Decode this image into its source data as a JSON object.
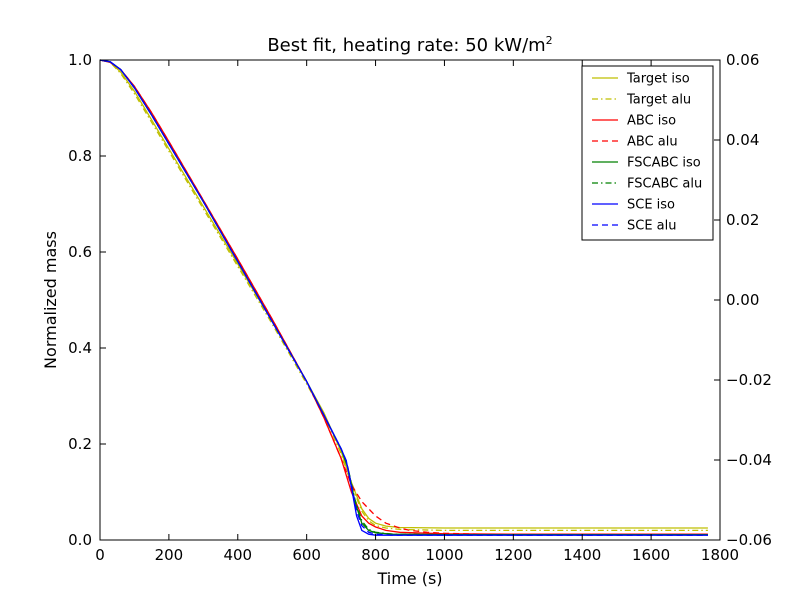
{
  "chart_data": {
    "type": "line",
    "title_text": "Best fit, heating rate: 50 kW/m",
    "title_sup": "2",
    "xlabel": "Time (s)",
    "ylabel": "Normalized mass",
    "xlim": [
      0,
      1800
    ],
    "ylim": [
      0,
      1.0
    ],
    "y2lim": [
      -0.06,
      0.06
    ],
    "xticks": [
      "0",
      "200",
      "400",
      "600",
      "800",
      "1000",
      "1200",
      "1400",
      "1600",
      "1800"
    ],
    "yticks": [
      "0.0",
      "0.2",
      "0.4",
      "0.6",
      "0.8",
      "1.0"
    ],
    "y2ticks": [
      "−0.06",
      "−0.04",
      "−0.02",
      "0.00",
      "0.02",
      "0.04",
      "0.06"
    ],
    "legend_position": "top-right",
    "series": [
      {
        "name": "Target iso",
        "color": "#bfbf00",
        "dash": "solid",
        "x": [
          0,
          30,
          60,
          100,
          150,
          200,
          300,
          400,
          500,
          600,
          650,
          700,
          730,
          760,
          780,
          800,
          830,
          870,
          1000,
          1200,
          1400,
          1600,
          1765
        ],
        "y": [
          1.0,
          0.995,
          0.975,
          0.935,
          0.875,
          0.815,
          0.695,
          0.575,
          0.455,
          0.33,
          0.265,
          0.185,
          0.12,
          0.065,
          0.045,
          0.035,
          0.029,
          0.026,
          0.025,
          0.025,
          0.025,
          0.025,
          0.025
        ]
      },
      {
        "name": "Target alu",
        "color": "#bfbf00",
        "dash": "dashdot",
        "x": [
          0,
          30,
          60,
          100,
          150,
          200,
          300,
          400,
          500,
          600,
          650,
          700,
          730,
          760,
          780,
          800,
          830,
          870,
          1000,
          1200,
          1400,
          1600,
          1765
        ],
        "y": [
          1.0,
          0.995,
          0.972,
          0.93,
          0.87,
          0.81,
          0.69,
          0.57,
          0.45,
          0.325,
          0.26,
          0.18,
          0.115,
          0.06,
          0.04,
          0.03,
          0.025,
          0.022,
          0.02,
          0.02,
          0.02,
          0.02,
          0.02
        ]
      },
      {
        "name": "ABC iso",
        "color": "#ff0000",
        "dash": "solid",
        "x": [
          0,
          30,
          60,
          100,
          150,
          200,
          300,
          400,
          500,
          600,
          650,
          700,
          730,
          760,
          780,
          800,
          830,
          870,
          1000,
          1200,
          1400,
          1600,
          1765
        ],
        "y": [
          1.0,
          0.995,
          0.98,
          0.945,
          0.89,
          0.83,
          0.708,
          0.585,
          0.46,
          0.33,
          0.255,
          0.17,
          0.1,
          0.05,
          0.035,
          0.027,
          0.02,
          0.016,
          0.013,
          0.012,
          0.012,
          0.012,
          0.012
        ]
      },
      {
        "name": "ABC alu",
        "color": "#ff0000",
        "dash": "dashed",
        "x": [
          0,
          30,
          60,
          100,
          150,
          200,
          300,
          400,
          500,
          600,
          650,
          700,
          730,
          760,
          780,
          800,
          830,
          870,
          900,
          950,
          1000,
          1100,
          1200,
          1400,
          1600,
          1765
        ],
        "y": [
          1.0,
          0.995,
          0.98,
          0.945,
          0.89,
          0.83,
          0.708,
          0.585,
          0.46,
          0.33,
          0.255,
          0.17,
          0.115,
          0.08,
          0.065,
          0.05,
          0.035,
          0.025,
          0.02,
          0.016,
          0.014,
          0.012,
          0.012,
          0.012,
          0.012,
          0.012
        ]
      },
      {
        "name": "FSCABC iso",
        "color": "#008000",
        "dash": "solid",
        "x": [
          0,
          30,
          60,
          100,
          150,
          200,
          300,
          400,
          500,
          600,
          650,
          700,
          720,
          740,
          760,
          780,
          800,
          850,
          1000,
          1200,
          1400,
          1600,
          1765
        ],
        "y": [
          1.0,
          0.996,
          0.98,
          0.942,
          0.885,
          0.825,
          0.705,
          0.58,
          0.455,
          0.33,
          0.26,
          0.19,
          0.15,
          0.08,
          0.035,
          0.02,
          0.015,
          0.012,
          0.011,
          0.011,
          0.011,
          0.011,
          0.011
        ]
      },
      {
        "name": "FSCABC alu",
        "color": "#008000",
        "dash": "dashdot",
        "x": [
          0,
          30,
          60,
          100,
          150,
          200,
          300,
          400,
          500,
          600,
          650,
          700,
          720,
          740,
          760,
          780,
          800,
          850,
          1000,
          1200,
          1400,
          1600,
          1765
        ],
        "y": [
          1.0,
          0.996,
          0.98,
          0.942,
          0.885,
          0.825,
          0.705,
          0.58,
          0.455,
          0.33,
          0.26,
          0.19,
          0.15,
          0.085,
          0.04,
          0.022,
          0.016,
          0.012,
          0.011,
          0.011,
          0.011,
          0.011,
          0.011
        ]
      },
      {
        "name": "SCE iso",
        "color": "#0000ff",
        "dash": "solid",
        "x": [
          0,
          30,
          60,
          100,
          150,
          200,
          300,
          400,
          500,
          600,
          650,
          700,
          715,
          730,
          745,
          760,
          780,
          800,
          850,
          1000,
          1200,
          1400,
          1600,
          1765
        ],
        "y": [
          1.0,
          0.996,
          0.98,
          0.942,
          0.885,
          0.825,
          0.705,
          0.58,
          0.455,
          0.33,
          0.26,
          0.19,
          0.165,
          0.11,
          0.05,
          0.02,
          0.012,
          0.01,
          0.01,
          0.01,
          0.01,
          0.01,
          0.01,
          0.01
        ]
      },
      {
        "name": "SCE alu",
        "color": "#0000ff",
        "dash": "dashed",
        "x": [
          0,
          30,
          60,
          100,
          150,
          200,
          300,
          400,
          500,
          600,
          650,
          700,
          715,
          730,
          745,
          760,
          780,
          800,
          850,
          1000,
          1200,
          1400,
          1600,
          1765
        ],
        "y": [
          1.0,
          0.996,
          0.98,
          0.942,
          0.885,
          0.825,
          0.705,
          0.58,
          0.455,
          0.33,
          0.26,
          0.19,
          0.165,
          0.115,
          0.06,
          0.03,
          0.016,
          0.012,
          0.01,
          0.01,
          0.01,
          0.01,
          0.01,
          0.01
        ]
      }
    ]
  }
}
